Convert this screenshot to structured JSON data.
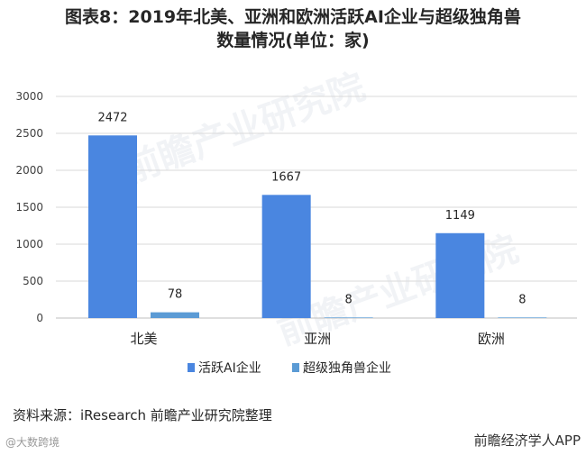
{
  "chart_data": {
    "type": "bar",
    "title_lines": [
      "图表8：2019年北美、亚洲和欧洲活跃AI企业与超级独角兽",
      "数量情况(单位：家)"
    ],
    "categories": [
      "北美",
      "亚洲",
      "欧洲"
    ],
    "series": [
      {
        "name": "活跃AI企业",
        "values": [
          2472,
          1667,
          1149
        ],
        "color": "#4a86e0"
      },
      {
        "name": "超级独角兽企业",
        "values": [
          78,
          8,
          8
        ],
        "color": "#5b9bd5"
      }
    ],
    "yticks": [
      0,
      500,
      1000,
      1500,
      2000,
      2500,
      3000
    ],
    "ylim": [
      0,
      3000
    ],
    "legend_position": "bottom",
    "grid": true
  },
  "source": "资料来源：iResearch 前瞻产业研究院整理",
  "watermarks": {
    "left": "@大数跨境",
    "right": "前瞻经济学人APP",
    "background": "前瞻产业研究院"
  }
}
